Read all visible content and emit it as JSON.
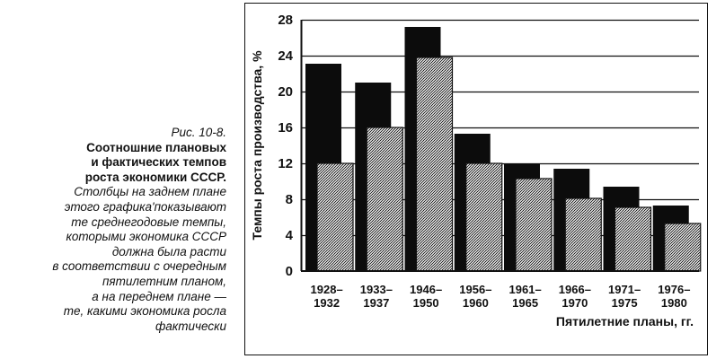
{
  "caption": {
    "figure_number": "Рис. 10-8.",
    "title_lines": [
      "Соотношние плановых",
      "и фактических темпов",
      "роста экономики СССР."
    ],
    "text_lines": [
      "Столбцы на заднем плане",
      "этого графика'показывают",
      "те среднегодовые темпы,",
      "которыми экономика СССР",
      "должна была расти",
      "в соответствии с очередным",
      "пятилетним планом,",
      "а на переднем плане —",
      "те, какими экономика росла",
      "фактически"
    ]
  },
  "chart_data": {
    "type": "bar",
    "title": "",
    "xlabel": "Пятилетние планы, гг.",
    "ylabel": "Темпы роста производства, %",
    "ylim": [
      0,
      28
    ],
    "yticks": [
      "0",
      "4",
      "8",
      "12",
      "16",
      "20",
      "24",
      "28"
    ],
    "grid": true,
    "categories": [
      [
        "1928–",
        "1932"
      ],
      [
        "1933–",
        "1937"
      ],
      [
        "1946–",
        "1950"
      ],
      [
        "1956–",
        "1960"
      ],
      [
        "1961–",
        "1965"
      ],
      [
        "1966–",
        "1970"
      ],
      [
        "1971–",
        "1975"
      ],
      [
        "1976–",
        "1980"
      ]
    ],
    "series": [
      {
        "role": "planned",
        "values": [
          23.1,
          21.0,
          27.2,
          15.3,
          12.0,
          11.4,
          9.4,
          7.3
        ],
        "color": "#0c0c0c"
      },
      {
        "role": "actual",
        "values": [
          12.0,
          16.0,
          23.8,
          12.0,
          10.3,
          8.1,
          7.1,
          5.3
        ],
        "color": "#8a8a8a"
      }
    ]
  }
}
